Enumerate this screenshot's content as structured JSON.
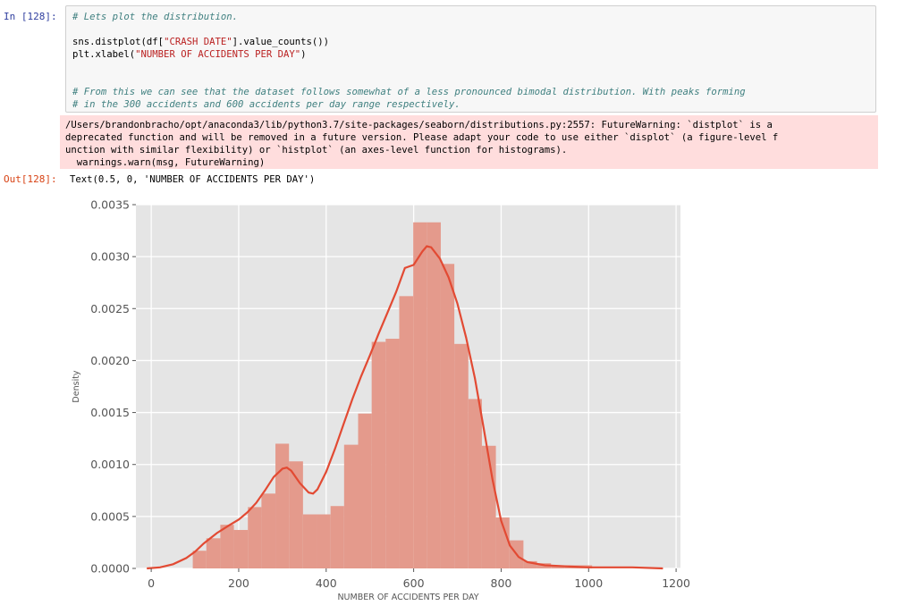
{
  "cell": {
    "in_prompt": "In [128]:",
    "code_lines": [
      {
        "segments": [
          {
            "cls": "cmt",
            "text": "# Lets plot the distribution."
          }
        ]
      },
      {
        "segments": []
      },
      {
        "segments": [
          {
            "cls": "",
            "text": "sns.distplot(df["
          },
          {
            "cls": "str",
            "text": "\"CRASH DATE\""
          },
          {
            "cls": "",
            "text": "].value_counts())"
          }
        ]
      },
      {
        "segments": [
          {
            "cls": "",
            "text": "plt.xlabel("
          },
          {
            "cls": "str",
            "text": "\"NUMBER OF ACCIDENTS PER DAY\""
          },
          {
            "cls": "",
            "text": ")"
          }
        ]
      },
      {
        "segments": []
      },
      {
        "segments": []
      },
      {
        "segments": [
          {
            "cls": "cmt",
            "text": "# From this we can see that the dataset follows somewhat of a less pronounced bimodal distribution. With peaks forming"
          }
        ]
      },
      {
        "segments": [
          {
            "cls": "cmt",
            "text": "# in the 300 accidents and 600 accidents per day range respectively."
          }
        ]
      }
    ]
  },
  "stderr": {
    "lines": [
      "/Users/brandonbracho/opt/anaconda3/lib/python3.7/site-packages/seaborn/distributions.py:2557: FutureWarning: `distplot` is a",
      "deprecated function and will be removed in a future version. Please adapt your code to use either `displot` (a figure-level f",
      "unction with similar flexibility) or `histplot` (an axes-level function for histograms).",
      "  warnings.warn(msg, FutureWarning)"
    ]
  },
  "output": {
    "out_prompt": "Out[128]:",
    "text": "Text(0.5, 0, 'NUMBER OF ACCIDENTS PER DAY')"
  },
  "colors": {
    "plot_bg": "#e5e5e5",
    "grid": "#ffffff",
    "bar": "#e49a8c",
    "kde": "#e24a33",
    "tick_text": "#555555"
  },
  "chart_data": {
    "type": "bar",
    "style": "histogram with kde line (seaborn distplot, ggplot style)",
    "xlabel": "NUMBER OF ACCIDENTS PER DAY",
    "ylabel": "Density",
    "xlim": [
      -35,
      1210
    ],
    "ylim": [
      0,
      0.0035
    ],
    "xticks": [
      0,
      200,
      400,
      600,
      800,
      1000,
      1200
    ],
    "yticks": [
      "0.0000",
      "0.0005",
      "0.0010",
      "0.0015",
      "0.0020",
      "0.0025",
      "0.0030",
      "0.0035"
    ],
    "grid": true,
    "histogram": {
      "bin_edges": [
        95,
        126,
        158,
        189,
        221,
        252,
        284,
        315,
        347,
        378,
        410,
        441,
        473,
        504,
        536,
        567,
        599,
        630,
        662,
        693,
        725,
        756,
        788,
        819,
        851,
        882,
        914,
        945,
        977,
        1008
      ],
      "density": [
        0.00017,
        0.00029,
        0.00042,
        0.00037,
        0.00059,
        0.00072,
        0.0012,
        0.00103,
        0.00052,
        0.00052,
        0.0006,
        0.00119,
        0.00149,
        0.00218,
        0.00221,
        0.00262,
        0.00333,
        0.00333,
        0.00293,
        0.00216,
        0.00163,
        0.00118,
        0.00049,
        0.00027,
        7e-05,
        5e-05,
        3e-05,
        3e-05,
        3e-05
      ]
    },
    "kde": {
      "x": [
        -10,
        20,
        50,
        80,
        100,
        120,
        150,
        180,
        200,
        220,
        240,
        260,
        280,
        300,
        310,
        320,
        340,
        360,
        370,
        380,
        400,
        420,
        440,
        460,
        480,
        500,
        520,
        540,
        560,
        580,
        600,
        620,
        630,
        640,
        660,
        680,
        700,
        720,
        740,
        760,
        780,
        800,
        820,
        840,
        860,
        900,
        950,
        1000,
        1050,
        1100,
        1170
      ],
      "y": [
        0.0,
        1e-05,
        4e-05,
        0.0001,
        0.00016,
        0.00024,
        0.00034,
        0.00042,
        0.00047,
        0.00054,
        0.00063,
        0.00075,
        0.00088,
        0.00096,
        0.00097,
        0.00094,
        0.00082,
        0.00073,
        0.00072,
        0.00076,
        0.00093,
        0.00115,
        0.00139,
        0.00163,
        0.00185,
        0.00205,
        0.00226,
        0.00246,
        0.00266,
        0.00289,
        0.00292,
        0.00305,
        0.0031,
        0.00309,
        0.00298,
        0.0028,
        0.00255,
        0.00222,
        0.00183,
        0.00135,
        0.00086,
        0.00046,
        0.00022,
        0.00011,
        6e-05,
        3e-05,
        2e-05,
        1e-05,
        1e-05,
        1e-05,
        0.0
      ]
    }
  }
}
